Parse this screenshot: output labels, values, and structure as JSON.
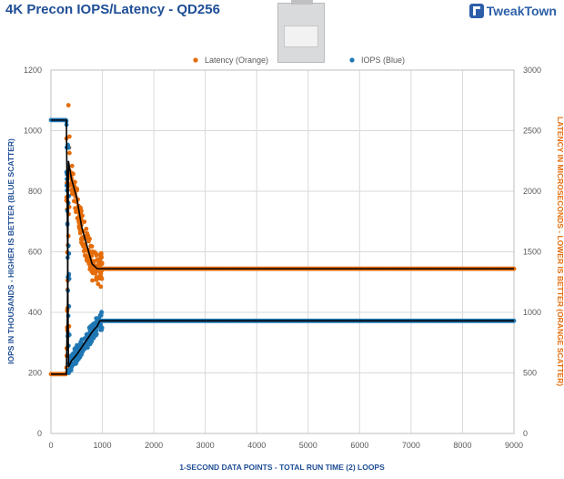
{
  "header": {
    "title": "4K Precon IOPS/Latency - QD256",
    "logo_text": "TweakTown"
  },
  "colors": {
    "iops": "#1f77b4",
    "latency": "#e46c0a",
    "fit_line": "#000000",
    "title": "#1f4e96",
    "left_axis_label": "#1f4e96",
    "right_axis_label": "#e46c0a"
  },
  "chart_data": {
    "type": "scatter",
    "title": "4K Precon IOPS/Latency - QD256",
    "xlabel": "1-SECOND  DATA POINTS - TOTAL RUN TIME (2) LOOPS",
    "ylabel_left": "IOPS IN THOUSANDS - HIGHER IS BETTER (BLUE SCATTER)",
    "ylabel_right": "LATENCY IN MICROSECONDS - LOWER IS BETTER (ORANGE SCATTER)",
    "xlim": [
      0,
      9000
    ],
    "ylim_left": [
      0,
      1200
    ],
    "ylim_right": [
      0,
      3000
    ],
    "x_ticks": [
      "0",
      "1000",
      "2000",
      "3000",
      "4000",
      "5000",
      "6000",
      "7000",
      "8000",
      "9000"
    ],
    "y_left_ticks": [
      "0",
      "200",
      "400",
      "600",
      "800",
      "1000",
      "1200"
    ],
    "y_right_ticks": [
      "0",
      "500",
      "1000",
      "1500",
      "2000",
      "2500",
      "3000"
    ],
    "grid": true,
    "legend_position": "top",
    "series": [
      {
        "name": "Latency (Orange)",
        "axis": "right",
        "trend": [
          [
            0,
            490
          ],
          [
            300,
            490
          ],
          [
            320,
            1000
          ],
          [
            340,
            2250
          ],
          [
            400,
            2100
          ],
          [
            500,
            1950
          ],
          [
            600,
            1700
          ],
          [
            700,
            1550
          ],
          [
            800,
            1400
          ],
          [
            900,
            1360
          ],
          [
            1000,
            1360
          ],
          [
            9000,
            1360
          ]
        ]
      },
      {
        "name": "IOPS (Blue)",
        "axis": "left",
        "trend": [
          [
            0,
            1035
          ],
          [
            300,
            1035
          ],
          [
            320,
            700
          ],
          [
            340,
            220
          ],
          [
            400,
            240
          ],
          [
            500,
            260
          ],
          [
            600,
            285
          ],
          [
            700,
            310
          ],
          [
            800,
            335
          ],
          [
            900,
            355
          ],
          [
            950,
            372
          ],
          [
            1000,
            372
          ],
          [
            9000,
            372
          ]
        ]
      }
    ]
  }
}
